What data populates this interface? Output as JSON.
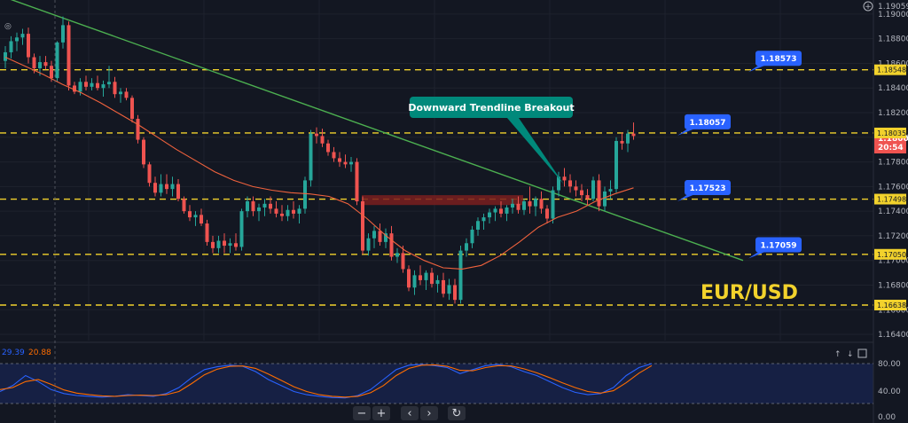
{
  "symbol": "EUR/USD",
  "colors": {
    "background": "#131722",
    "up": "#26a69a",
    "down": "#ef5350",
    "level": "#f2d22c",
    "trendline": "#4caf50",
    "ma": "#f0623d",
    "callout": "#2962ff",
    "annotation": "#00897b",
    "stoch_k": "#2962ff",
    "stoch_d": "#ff6d00"
  },
  "price_axis": {
    "ticks": [
      "1.19000",
      "1.18800",
      "1.18600",
      "1.18400",
      "1.18200",
      "1.18000",
      "1.17800",
      "1.17600",
      "1.17400",
      "1.17200",
      "1.17000",
      "1.16800",
      "1.16600",
      "1.16400"
    ],
    "top_label": "1.19059",
    "current_price": "1.18006",
    "countdown": "20:54"
  },
  "levels": [
    {
      "price": 1.18548,
      "label": "1.18548"
    },
    {
      "price": 1.18035,
      "label": "1.18035"
    },
    {
      "price": 1.17498,
      "label": "1.17498"
    },
    {
      "price": 1.1705,
      "label": "1.17050"
    },
    {
      "price": 1.16638,
      "label": "1.16638"
    }
  ],
  "callouts": [
    "1.18573",
    "1.18057",
    "1.17523",
    "1.17059"
  ],
  "annotation": "Downward Trendline Breakout",
  "oscillator": {
    "values": [
      "29.39",
      "20.88"
    ],
    "ticks": [
      "80.00",
      "40.00",
      "0.00"
    ]
  },
  "controls": [
    "−",
    "+",
    "‹",
    "›",
    "↻"
  ],
  "chart_data": {
    "type": "candlestick",
    "title": "EUR/USD",
    "ylim": [
      1.1635,
      1.191
    ],
    "series": [
      {
        "name": "price",
        "ohlc": [
          [
            1.1862,
            1.1874,
            1.1856,
            1.1869
          ],
          [
            1.1869,
            1.1882,
            1.1864,
            1.1878
          ],
          [
            1.1878,
            1.1885,
            1.187,
            1.1881
          ],
          [
            1.1881,
            1.1888,
            1.1875,
            1.1884
          ],
          [
            1.1884,
            1.1889,
            1.186,
            1.1865
          ],
          [
            1.1865,
            1.1868,
            1.1852,
            1.1856
          ],
          [
            1.1856,
            1.1866,
            1.185,
            1.1861
          ],
          [
            1.1861,
            1.1866,
            1.1855,
            1.1858
          ],
          [
            1.1858,
            1.1862,
            1.1845,
            1.1848
          ],
          [
            1.1848,
            1.1878,
            1.1845,
            1.1877
          ],
          [
            1.1877,
            1.1898,
            1.1872,
            1.1891
          ],
          [
            1.1891,
            1.1894,
            1.1838,
            1.1842
          ],
          [
            1.1842,
            1.1845,
            1.1835,
            1.1837
          ],
          [
            1.1837,
            1.1848,
            1.1834,
            1.1845
          ],
          [
            1.1845,
            1.185,
            1.1838,
            1.1841
          ],
          [
            1.1841,
            1.1848,
            1.1838,
            1.1844
          ],
          [
            1.1844,
            1.185,
            1.1838,
            1.184
          ],
          [
            1.184,
            1.1846,
            1.1833,
            1.1843
          ],
          [
            1.1843,
            1.1858,
            1.184,
            1.1845
          ],
          [
            1.1845,
            1.1849,
            1.1832,
            1.1835
          ],
          [
            1.1835,
            1.184,
            1.1828,
            1.1837
          ],
          [
            1.1837,
            1.184,
            1.183,
            1.1832
          ],
          [
            1.1832,
            1.1834,
            1.1812,
            1.1815
          ],
          [
            1.1815,
            1.1818,
            1.1795,
            1.1798
          ],
          [
            1.1798,
            1.18,
            1.1775,
            1.1778
          ],
          [
            1.1778,
            1.178,
            1.176,
            1.1763
          ],
          [
            1.1763,
            1.1768,
            1.1752,
            1.1755
          ],
          [
            1.1755,
            1.177,
            1.1752,
            1.1762
          ],
          [
            1.1762,
            1.177,
            1.1754,
            1.1758
          ],
          [
            1.1758,
            1.1768,
            1.1752,
            1.1762
          ],
          [
            1.1762,
            1.1766,
            1.1748,
            1.175
          ],
          [
            1.175,
            1.1752,
            1.1738,
            1.174
          ],
          [
            1.174,
            1.1745,
            1.1732,
            1.1735
          ],
          [
            1.1735,
            1.174,
            1.1728,
            1.1737
          ],
          [
            1.1737,
            1.1742,
            1.1728,
            1.173
          ],
          [
            1.173,
            1.1733,
            1.1712,
            1.1715
          ],
          [
            1.1715,
            1.172,
            1.1706,
            1.171
          ],
          [
            1.171,
            1.172,
            1.1706,
            1.1716
          ],
          [
            1.1716,
            1.1722,
            1.1706,
            1.1712
          ],
          [
            1.1712,
            1.1718,
            1.1706,
            1.1714
          ],
          [
            1.1714,
            1.1722,
            1.1708,
            1.1711
          ],
          [
            1.1711,
            1.1742,
            1.1708,
            1.174
          ],
          [
            1.174,
            1.1752,
            1.1735,
            1.1748
          ],
          [
            1.1748,
            1.1752,
            1.1736,
            1.174
          ],
          [
            1.174,
            1.1746,
            1.1732,
            1.1743
          ],
          [
            1.1743,
            1.175,
            1.1736,
            1.1746
          ],
          [
            1.1746,
            1.1752,
            1.1738,
            1.1742
          ],
          [
            1.1742,
            1.1748,
            1.1735,
            1.1738
          ],
          [
            1.1738,
            1.1745,
            1.1732,
            1.1736
          ],
          [
            1.1736,
            1.1745,
            1.1732,
            1.1741
          ],
          [
            1.1741,
            1.1748,
            1.1734,
            1.1738
          ],
          [
            1.1738,
            1.1745,
            1.173,
            1.1742
          ],
          [
            1.1742,
            1.1768,
            1.1738,
            1.1765
          ],
          [
            1.1765,
            1.1806,
            1.176,
            1.1803
          ],
          [
            1.1803,
            1.1808,
            1.1795,
            1.1801
          ],
          [
            1.1801,
            1.1807,
            1.1792,
            1.1795
          ],
          [
            1.1795,
            1.1798,
            1.1785,
            1.1788
          ],
          [
            1.1788,
            1.1792,
            1.178,
            1.1783
          ],
          [
            1.1783,
            1.1788,
            1.1776,
            1.178
          ],
          [
            1.178,
            1.1786,
            1.1775,
            1.1778
          ],
          [
            1.1778,
            1.1784,
            1.1772,
            1.178
          ],
          [
            1.178,
            1.1783,
            1.1745,
            1.1748
          ],
          [
            1.1748,
            1.1752,
            1.1705,
            1.1708
          ],
          [
            1.1708,
            1.1722,
            1.1704,
            1.1718
          ],
          [
            1.1718,
            1.1728,
            1.171,
            1.1724
          ],
          [
            1.1724,
            1.173,
            1.1712,
            1.1715
          ],
          [
            1.1715,
            1.1726,
            1.171,
            1.1722
          ],
          [
            1.1722,
            1.1728,
            1.17,
            1.1703
          ],
          [
            1.1703,
            1.171,
            1.1698,
            1.1706
          ],
          [
            1.1706,
            1.1712,
            1.169,
            1.1693
          ],
          [
            1.1693,
            1.1696,
            1.1675,
            1.1678
          ],
          [
            1.1678,
            1.1692,
            1.1672,
            1.1688
          ],
          [
            1.1688,
            1.1696,
            1.168,
            1.1684
          ],
          [
            1.1684,
            1.1692,
            1.1676,
            1.169
          ],
          [
            1.169,
            1.1694,
            1.1678,
            1.1681
          ],
          [
            1.1681,
            1.1688,
            1.1674,
            1.1684
          ],
          [
            1.1684,
            1.169,
            1.167,
            1.1673
          ],
          [
            1.1673,
            1.1685,
            1.1668,
            1.168
          ],
          [
            1.168,
            1.1685,
            1.1665,
            1.1668
          ],
          [
            1.1668,
            1.1712,
            1.1665,
            1.1708
          ],
          [
            1.1708,
            1.1718,
            1.1703,
            1.1714
          ],
          [
            1.1714,
            1.1728,
            1.171,
            1.1725
          ],
          [
            1.1725,
            1.1735,
            1.172,
            1.1732
          ],
          [
            1.1732,
            1.1738,
            1.1725,
            1.1735
          ],
          [
            1.1735,
            1.1742,
            1.173,
            1.1739
          ],
          [
            1.1739,
            1.1744,
            1.1732,
            1.1742
          ],
          [
            1.1742,
            1.1748,
            1.1735,
            1.1738
          ],
          [
            1.1738,
            1.1745,
            1.1732,
            1.1743
          ],
          [
            1.1743,
            1.175,
            1.1738,
            1.1746
          ],
          [
            1.1746,
            1.1752,
            1.1738,
            1.1741
          ],
          [
            1.1741,
            1.175,
            1.1737,
            1.1748
          ],
          [
            1.1748,
            1.176,
            1.1738,
            1.1744
          ],
          [
            1.1744,
            1.1752,
            1.1736,
            1.175
          ],
          [
            1.175,
            1.1756,
            1.1738,
            1.1742
          ],
          [
            1.1742,
            1.1745,
            1.173,
            1.1734
          ],
          [
            1.1734,
            1.176,
            1.173,
            1.1757
          ],
          [
            1.1757,
            1.1772,
            1.1752,
            1.1768
          ],
          [
            1.1768,
            1.1775,
            1.176,
            1.1765
          ],
          [
            1.1765,
            1.177,
            1.1755,
            1.176
          ],
          [
            1.176,
            1.1765,
            1.1752,
            1.1757
          ],
          [
            1.1757,
            1.1762,
            1.1748,
            1.1753
          ],
          [
            1.1753,
            1.1758,
            1.1745,
            1.175
          ],
          [
            1.175,
            1.1768,
            1.1748,
            1.1765
          ],
          [
            1.1765,
            1.177,
            1.174,
            1.1744
          ],
          [
            1.1744,
            1.176,
            1.174,
            1.1756
          ],
          [
            1.1756,
            1.1765,
            1.175,
            1.1758
          ],
          [
            1.1758,
            1.18,
            1.1755,
            1.1797
          ],
          [
            1.1797,
            1.1804,
            1.179,
            1.1795
          ],
          [
            1.1795,
            1.1806,
            1.1788,
            1.1803
          ],
          [
            1.1803,
            1.1812,
            1.1798,
            1.1801
          ]
        ]
      },
      {
        "name": "moving_average",
        "values": [
          1.1865,
          1.1858,
          1.1851,
          1.1843,
          1.1836,
          1.1828,
          1.1819,
          1.181,
          1.18,
          1.179,
          1.1781,
          1.1772,
          1.1765,
          1.176,
          1.1757,
          1.1755,
          1.1754,
          1.1752,
          1.1746,
          1.1734,
          1.172,
          1.1708,
          1.17,
          1.1694,
          1.1693,
          1.1696,
          1.1704,
          1.1715,
          1.1727,
          1.1735,
          1.174,
          1.1748,
          1.1754,
          1.1759
        ]
      }
    ]
  }
}
